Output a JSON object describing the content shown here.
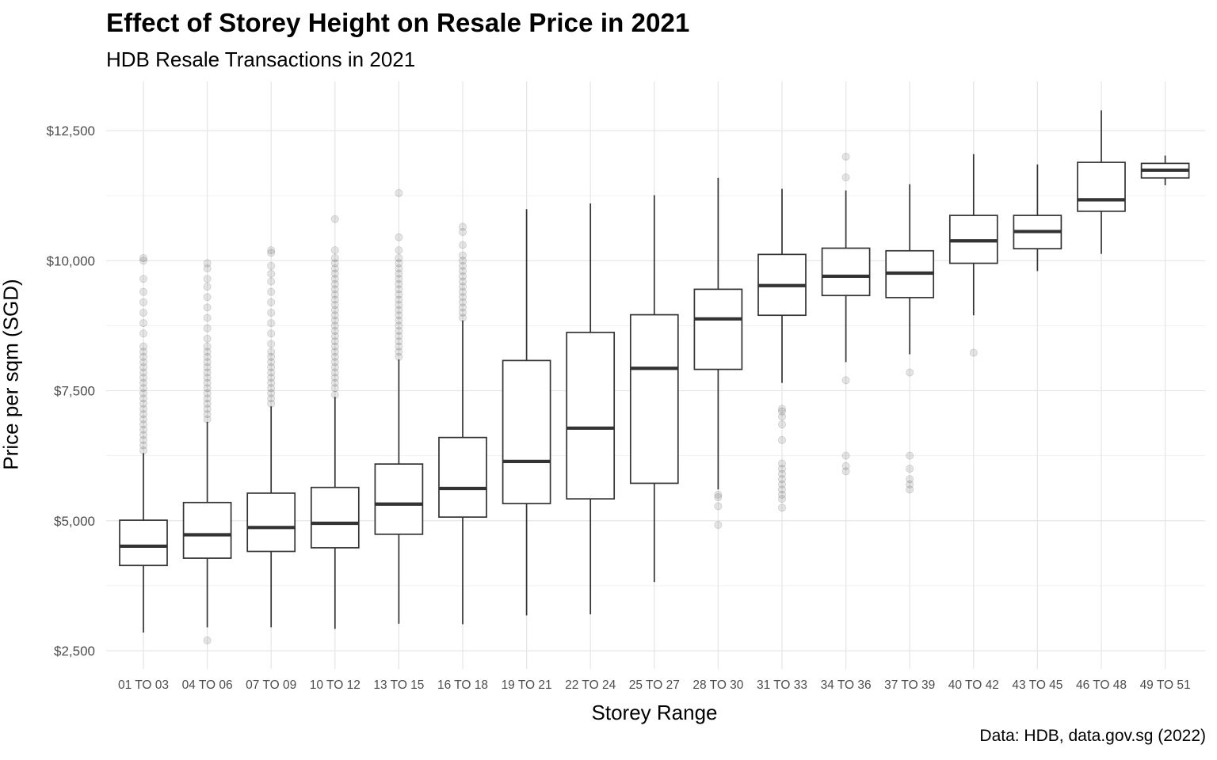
{
  "chart_data": {
    "type": "boxplot",
    "title": "Effect of Storey Height on Resale Price in 2021",
    "subtitle": "HDB Resale Transactions in 2021",
    "xlabel": "Storey Range",
    "ylabel": "Price per sqm (SGD)",
    "caption": "Data: HDB, data.gov.sg (2022)",
    "ylim": [
      2300,
      13400
    ],
    "y_ticks": [
      2500,
      5000,
      7500,
      10000,
      12500
    ],
    "y_tick_labels": [
      "$2,500",
      "$5,000",
      "$7,500",
      "$10,000",
      "$12,500"
    ],
    "grid": true,
    "categories": [
      "01 TO 03",
      "04 TO 06",
      "07 TO 09",
      "10 TO 12",
      "13 TO 15",
      "16 TO 18",
      "19 TO 21",
      "22 TO 24",
      "25 TO 27",
      "28 TO 30",
      "31 TO 33",
      "34 TO 36",
      "37 TO 39",
      "40 TO 42",
      "43 TO 45",
      "46 TO 48",
      "49 TO 51"
    ],
    "boxes": [
      {
        "min": 2850,
        "q1": 4140,
        "median": 4510,
        "q3": 5010,
        "max": 6300,
        "outliers": [
          6350,
          6450,
          6550,
          6650,
          6750,
          6850,
          6950,
          7050,
          7150,
          7250,
          7350,
          7450,
          7550,
          7650,
          7750,
          7850,
          7950,
          8050,
          8150,
          8250,
          8350,
          8600,
          8800,
          9000,
          9200,
          9400,
          9650,
          10000,
          10050
        ]
      },
      {
        "min": 2950,
        "q1": 4280,
        "median": 4730,
        "q3": 5350,
        "max": 6900,
        "outliers": [
          2700,
          6950,
          7050,
          7150,
          7250,
          7350,
          7450,
          7550,
          7650,
          7750,
          7850,
          7950,
          8050,
          8150,
          8250,
          8350,
          8500,
          8700,
          8900,
          9100,
          9300,
          9500,
          9650,
          9850,
          9950
        ]
      },
      {
        "min": 2950,
        "q1": 4410,
        "median": 4870,
        "q3": 5530,
        "max": 7200,
        "outliers": [
          7250,
          7350,
          7450,
          7550,
          7650,
          7750,
          7850,
          7950,
          8050,
          8150,
          8250,
          8400,
          8600,
          8800,
          9000,
          9200,
          9400,
          9600,
          9750,
          9900,
          10150,
          10200
        ]
      },
      {
        "min": 2920,
        "q1": 4480,
        "median": 4950,
        "q3": 5640,
        "max": 7380,
        "outliers": [
          7420,
          7550,
          7650,
          7750,
          7850,
          7950,
          8050,
          8150,
          8250,
          8350,
          8450,
          8550,
          8650,
          8750,
          8850,
          8950,
          9050,
          9150,
          9250,
          9350,
          9450,
          9550,
          9650,
          9750,
          9850,
          9950,
          10050,
          10200,
          10800
        ]
      },
      {
        "min": 3020,
        "q1": 4740,
        "median": 5320,
        "q3": 6090,
        "max": 8100,
        "outliers": [
          8150,
          8250,
          8350,
          8450,
          8550,
          8650,
          8750,
          8850,
          8950,
          9050,
          9150,
          9250,
          9350,
          9450,
          9550,
          9650,
          9750,
          9850,
          9950,
          10050,
          10200,
          10450,
          11300
        ]
      },
      {
        "min": 3010,
        "q1": 5070,
        "median": 5620,
        "q3": 6600,
        "max": 8850,
        "outliers": [
          8900,
          9000,
          9100,
          9200,
          9300,
          9400,
          9500,
          9600,
          9700,
          9800,
          9900,
          10000,
          10100,
          10300,
          10550,
          10650
        ]
      },
      {
        "min": 3180,
        "q1": 5330,
        "median": 6140,
        "q3": 8080,
        "max": 10990,
        "outliers": []
      },
      {
        "min": 3200,
        "q1": 5420,
        "median": 6780,
        "q3": 8620,
        "max": 11100,
        "outliers": []
      },
      {
        "min": 3820,
        "q1": 5720,
        "median": 7930,
        "q3": 8960,
        "max": 11260,
        "outliers": []
      },
      {
        "min": 5600,
        "q1": 7910,
        "median": 8880,
        "q3": 9450,
        "max": 11590,
        "outliers": [
          4920,
          5280,
          5450,
          5500
        ]
      },
      {
        "min": 7650,
        "q1": 8950,
        "median": 9520,
        "q3": 10120,
        "max": 11380,
        "outliers": [
          5250,
          5420,
          5500,
          5600,
          5700,
          5800,
          5900,
          6000,
          6100,
          6550,
          6850,
          7000,
          7100,
          7150
        ]
      },
      {
        "min": 8050,
        "q1": 9330,
        "median": 9700,
        "q3": 10240,
        "max": 11350,
        "outliers": [
          5950,
          6050,
          6250,
          7700,
          11600,
          12000
        ]
      },
      {
        "min": 8200,
        "q1": 9290,
        "median": 9760,
        "q3": 10190,
        "max": 11470,
        "outliers": [
          5600,
          5700,
          5800,
          6000,
          6250,
          7850
        ]
      },
      {
        "min": 8950,
        "q1": 9950,
        "median": 10380,
        "q3": 10870,
        "max": 12050,
        "outliers": [
          8230
        ]
      },
      {
        "min": 9800,
        "q1": 10230,
        "median": 10560,
        "q3": 10870,
        "max": 11850,
        "outliers": []
      },
      {
        "min": 10130,
        "q1": 10950,
        "median": 11170,
        "q3": 11890,
        "max": 12890,
        "outliers": []
      },
      {
        "min": 11450,
        "q1": 11590,
        "median": 11740,
        "q3": 11870,
        "max": 12020,
        "outliers": []
      }
    ]
  }
}
